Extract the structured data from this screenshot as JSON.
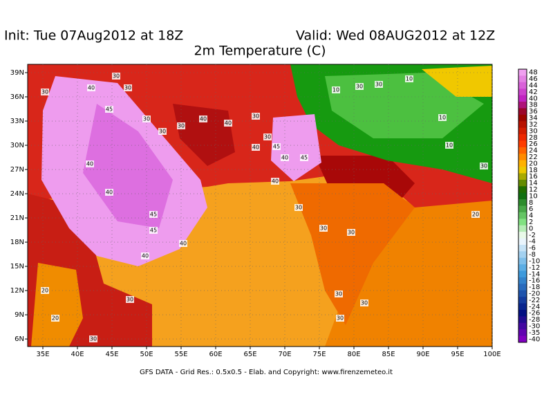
{
  "header": {
    "init": "Init: Tue 07Aug2012 at 18Z",
    "valid": "Valid: Wed 08AUG2012 at 12Z",
    "title": "2m Temperature (C)"
  },
  "map": {
    "lon_ticks": [
      {
        "value": 35,
        "label": "35E"
      },
      {
        "value": 40,
        "label": "40E"
      },
      {
        "value": 45,
        "label": "45E"
      },
      {
        "value": 50,
        "label": "50E"
      },
      {
        "value": 55,
        "label": "55E"
      },
      {
        "value": 60,
        "label": "60E"
      },
      {
        "value": 65,
        "label": "65E"
      },
      {
        "value": 70,
        "label": "70E"
      },
      {
        "value": 75,
        "label": "75E"
      },
      {
        "value": 80,
        "label": "80E"
      },
      {
        "value": 85,
        "label": "85E"
      },
      {
        "value": 90,
        "label": "90E"
      },
      {
        "value": 95,
        "label": "95E"
      },
      {
        "value": 100,
        "label": "100E"
      }
    ],
    "lat_ticks": [
      {
        "value": 39,
        "label": "39N"
      },
      {
        "value": 36,
        "label": "36N"
      },
      {
        "value": 33,
        "label": "33N"
      },
      {
        "value": 30,
        "label": "30N"
      },
      {
        "value": 27,
        "label": "27N"
      },
      {
        "value": 24,
        "label": "24N"
      },
      {
        "value": 21,
        "label": "21N"
      },
      {
        "value": 18,
        "label": "18N"
      },
      {
        "value": 15,
        "label": "15N"
      },
      {
        "value": 12,
        "label": "12N"
      },
      {
        "value": 9,
        "label": "9N"
      },
      {
        "value": 6,
        "label": "6N"
      }
    ],
    "contour_labels": [
      30,
      30,
      40,
      30,
      45,
      30,
      30,
      30,
      40,
      40,
      30,
      30,
      40,
      45,
      40,
      45,
      40,
      40,
      40,
      45,
      45,
      40,
      40,
      30,
      30,
      30,
      30,
      30,
      30,
      30,
      30,
      10,
      10,
      10,
      10,
      30,
      20,
      20,
      20,
      30,
      30
    ]
  },
  "colorbar": {
    "labels": [
      48,
      46,
      44,
      42,
      40,
      38,
      36,
      34,
      32,
      30,
      28,
      26,
      24,
      22,
      20,
      18,
      16,
      14,
      12,
      10,
      8,
      6,
      4,
      2,
      0,
      -2,
      -4,
      -6,
      -8,
      -10,
      -12,
      -14,
      -16,
      -18,
      -20,
      -22,
      -24,
      -26,
      -28,
      -30,
      -35,
      -40
    ]
  },
  "footer": "GFS DATA - Grid Res.: 0.5x0.5 - Elab. and Copyright: www.firenzemeteo.it"
}
